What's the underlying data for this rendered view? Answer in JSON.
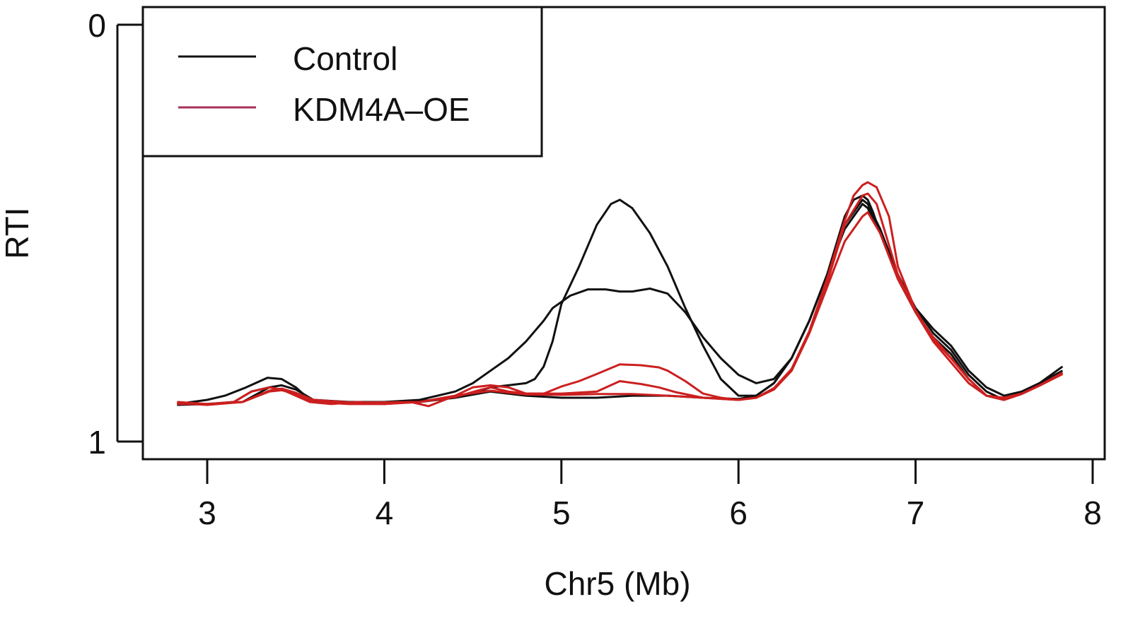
{
  "chart_data": {
    "type": "line",
    "xlabel": "Chr5 (Mb)",
    "ylabel": "RTI",
    "xlim": [
      2.64,
      8.0
    ],
    "ylim": [
      1.0,
      0.0
    ],
    "y_reversed": true,
    "xticks": [
      3,
      4,
      5,
      6,
      7,
      8
    ],
    "xtick_labels": [
      "3",
      "4",
      "5",
      "6",
      "7",
      "8"
    ],
    "yticks": [
      0,
      1
    ],
    "ytick_labels": [
      "0",
      "1"
    ],
    "legend": {
      "position": "top-left",
      "entries": [
        {
          "label": "Control",
          "color": "#111111"
        },
        {
          "label": "KDM4A–OE",
          "color": "#cc1f1f"
        }
      ]
    },
    "series": [
      {
        "group": "Control",
        "color": "#111111",
        "x": [
          2.83,
          3.0,
          3.1,
          3.22,
          3.34,
          3.42,
          3.5,
          3.58,
          3.7,
          3.85,
          4.0,
          4.2,
          4.4,
          4.5,
          4.6,
          4.7,
          4.8,
          4.9,
          4.95,
          5.05,
          5.15,
          5.25,
          5.33,
          5.4,
          5.5,
          5.6,
          5.7,
          5.8,
          5.9,
          6.0,
          6.1,
          6.2,
          6.3,
          6.4,
          6.5,
          6.55,
          6.6,
          6.65,
          6.7,
          6.73,
          6.76,
          6.8,
          6.9,
          7.0,
          7.1,
          7.2,
          7.3,
          7.4,
          7.5,
          7.6,
          7.7,
          7.83
        ],
        "y": [
          0.91,
          0.9,
          0.89,
          0.87,
          0.847,
          0.85,
          0.87,
          0.9,
          0.905,
          0.905,
          0.905,
          0.9,
          0.88,
          0.86,
          0.83,
          0.8,
          0.76,
          0.71,
          0.68,
          0.65,
          0.635,
          0.635,
          0.64,
          0.64,
          0.633,
          0.645,
          0.69,
          0.75,
          0.8,
          0.84,
          0.86,
          0.85,
          0.8,
          0.71,
          0.6,
          0.53,
          0.46,
          0.42,
          0.41,
          0.42,
          0.45,
          0.5,
          0.6,
          0.68,
          0.73,
          0.77,
          0.83,
          0.87,
          0.89,
          0.88,
          0.86,
          0.82
        ]
      },
      {
        "group": "Control",
        "color": "#111111",
        "x": [
          2.83,
          3.0,
          3.15,
          3.25,
          3.35,
          3.42,
          3.5,
          3.58,
          3.7,
          3.9,
          4.1,
          4.3,
          4.5,
          4.6,
          4.7,
          4.8,
          4.85,
          4.9,
          4.95,
          5.0,
          5.1,
          5.2,
          5.28,
          5.33,
          5.4,
          5.5,
          5.6,
          5.7,
          5.8,
          5.9,
          6.0,
          6.1,
          6.2,
          6.3,
          6.4,
          6.5,
          6.6,
          6.7,
          6.73,
          6.8,
          6.9,
          7.0,
          7.1,
          7.2,
          7.3,
          7.4,
          7.5,
          7.6,
          7.7,
          7.83
        ],
        "y": [
          0.912,
          0.91,
          0.905,
          0.88,
          0.87,
          0.875,
          0.885,
          0.9,
          0.905,
          0.905,
          0.905,
          0.9,
          0.885,
          0.87,
          0.865,
          0.86,
          0.85,
          0.82,
          0.76,
          0.67,
          0.58,
          0.48,
          0.43,
          0.42,
          0.44,
          0.5,
          0.58,
          0.68,
          0.77,
          0.85,
          0.89,
          0.89,
          0.86,
          0.8,
          0.71,
          0.6,
          0.48,
          0.42,
          0.43,
          0.49,
          0.6,
          0.68,
          0.74,
          0.78,
          0.84,
          0.88,
          0.9,
          0.88,
          0.86,
          0.83
        ]
      },
      {
        "group": "Control",
        "color": "#111111",
        "x": [
          2.83,
          3.0,
          3.2,
          3.35,
          3.42,
          3.5,
          3.6,
          3.8,
          4.0,
          4.2,
          4.4,
          4.6,
          4.8,
          5.0,
          5.2,
          5.4,
          5.6,
          5.8,
          6.0,
          6.1,
          6.2,
          6.3,
          6.4,
          6.5,
          6.6,
          6.7,
          6.73,
          6.8,
          6.9,
          7.0,
          7.1,
          7.2,
          7.3,
          7.4,
          7.5,
          7.6,
          7.7,
          7.83
        ],
        "y": [
          0.91,
          0.91,
          0.905,
          0.87,
          0.865,
          0.875,
          0.9,
          0.905,
          0.905,
          0.905,
          0.895,
          0.88,
          0.89,
          0.895,
          0.895,
          0.89,
          0.89,
          0.895,
          0.898,
          0.89,
          0.86,
          0.8,
          0.71,
          0.6,
          0.49,
          0.43,
          0.44,
          0.5,
          0.61,
          0.69,
          0.75,
          0.79,
          0.85,
          0.89,
          0.9,
          0.885,
          0.865,
          0.835
        ]
      },
      {
        "group": "KDM4A–OE",
        "color": "#cc1f1f",
        "x": [
          2.83,
          3.0,
          3.15,
          3.25,
          3.35,
          3.42,
          3.5,
          3.58,
          3.7,
          3.85,
          4.0,
          4.15,
          4.25,
          4.4,
          4.5,
          4.6,
          4.7,
          4.8,
          4.9,
          5.0,
          5.2,
          5.33,
          5.45,
          5.55,
          5.65,
          5.8,
          6.0,
          6.1,
          6.2,
          6.3,
          6.4,
          6.5,
          6.6,
          6.7,
          6.73,
          6.78,
          6.9,
          7.0,
          7.1,
          7.2,
          7.3,
          7.4,
          7.5,
          7.6,
          7.7,
          7.83
        ],
        "y": [
          0.91,
          0.91,
          0.905,
          0.88,
          0.87,
          0.875,
          0.89,
          0.905,
          0.91,
          0.905,
          0.91,
          0.905,
          0.915,
          0.89,
          0.87,
          0.865,
          0.87,
          0.885,
          0.885,
          0.885,
          0.88,
          0.855,
          0.862,
          0.87,
          0.882,
          0.895,
          0.9,
          0.895,
          0.875,
          0.83,
          0.74,
          0.62,
          0.48,
          0.41,
          0.405,
          0.43,
          0.6,
          0.69,
          0.75,
          0.8,
          0.85,
          0.89,
          0.9,
          0.885,
          0.865,
          0.835
        ]
      },
      {
        "group": "KDM4A–OE",
        "color": "#cc1f1f",
        "x": [
          2.83,
          3.0,
          3.2,
          3.35,
          3.42,
          3.5,
          3.6,
          3.8,
          4.0,
          4.2,
          4.4,
          4.55,
          4.6,
          4.7,
          4.8,
          4.9,
          5.0,
          5.1,
          5.2,
          5.33,
          5.45,
          5.55,
          5.6,
          5.7,
          5.8,
          5.9,
          6.0,
          6.1,
          6.2,
          6.3,
          6.4,
          6.5,
          6.6,
          6.7,
          6.73,
          6.8,
          6.9,
          7.0,
          7.1,
          7.2,
          7.3,
          7.4,
          7.5,
          7.6,
          7.7,
          7.83
        ],
        "y": [
          0.905,
          0.91,
          0.905,
          0.88,
          0.877,
          0.885,
          0.905,
          0.91,
          0.91,
          0.905,
          0.893,
          0.875,
          0.87,
          0.88,
          0.885,
          0.885,
          0.868,
          0.855,
          0.838,
          0.815,
          0.817,
          0.822,
          0.83,
          0.855,
          0.885,
          0.895,
          0.9,
          0.895,
          0.875,
          0.83,
          0.74,
          0.63,
          0.52,
          0.46,
          0.45,
          0.5,
          0.61,
          0.69,
          0.76,
          0.81,
          0.86,
          0.89,
          0.895,
          0.885,
          0.865,
          0.838
        ]
      },
      {
        "group": "KDM4A–OE",
        "color": "#cc1f1f",
        "x": [
          2.83,
          3.0,
          3.2,
          3.35,
          3.42,
          3.5,
          3.6,
          3.8,
          4.0,
          4.2,
          4.4,
          4.6,
          4.8,
          5.0,
          5.2,
          5.4,
          5.6,
          5.8,
          6.0,
          6.1,
          6.2,
          6.3,
          6.4,
          6.5,
          6.6,
          6.65,
          6.7,
          6.73,
          6.78,
          6.85,
          6.9,
          7.0,
          7.1,
          7.2,
          7.3,
          7.4,
          7.5,
          7.6,
          7.7,
          7.83
        ],
        "y": [
          0.908,
          0.912,
          0.905,
          0.878,
          0.873,
          0.883,
          0.9,
          0.906,
          0.906,
          0.905,
          0.89,
          0.878,
          0.887,
          0.888,
          0.886,
          0.886,
          0.89,
          0.895,
          0.9,
          0.895,
          0.872,
          0.826,
          0.735,
          0.61,
          0.47,
          0.41,
          0.385,
          0.378,
          0.39,
          0.46,
          0.58,
          0.685,
          0.755,
          0.8,
          0.85,
          0.89,
          0.9,
          0.886,
          0.866,
          0.838
        ]
      }
    ]
  }
}
